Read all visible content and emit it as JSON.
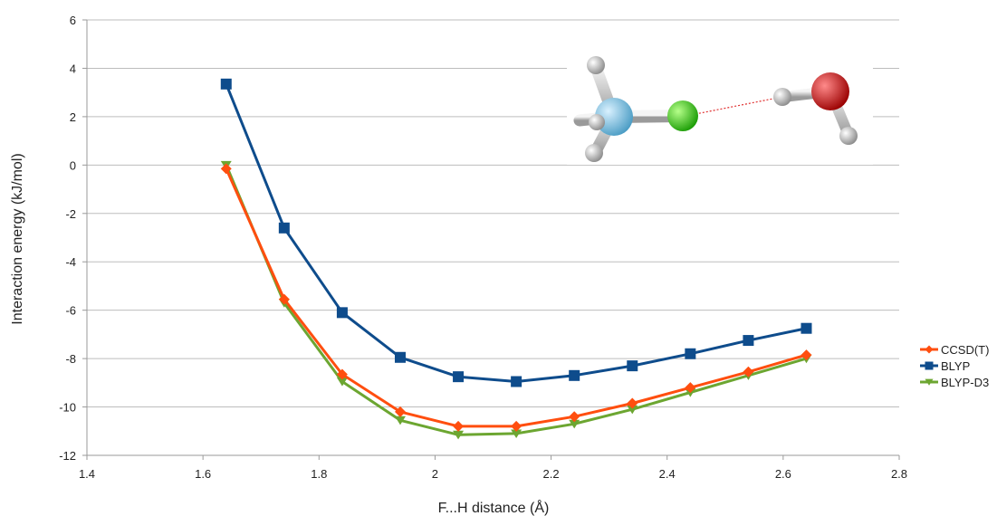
{
  "chart_data": {
    "type": "line",
    "xlabel": "F...H distance (Å)",
    "ylabel": "Interaction energy (kJ/mol)",
    "xlim": [
      1.4,
      2.8
    ],
    "ylim": [
      -12,
      6
    ],
    "xticks": [
      "1.4",
      "1.6",
      "1.8",
      "2",
      "2.2",
      "2.4",
      "2.6",
      "2.8"
    ],
    "yticks": [
      "6",
      "4",
      "2",
      "0",
      "-2",
      "-4",
      "-6",
      "-8",
      "-10",
      "-12"
    ],
    "grid": "horizontal",
    "legend_position": "right",
    "x": [
      1.64,
      1.74,
      1.84,
      1.94,
      2.04,
      2.14,
      2.24,
      2.34,
      2.44,
      2.54,
      2.64
    ],
    "series": [
      {
        "name": "CCSD(T)",
        "color": "#ff4e0f",
        "marker": "diamond",
        "values": [
          -0.15,
          -5.55,
          -8.65,
          -10.2,
          -10.8,
          -10.8,
          -10.4,
          -9.85,
          -9.2,
          -8.55,
          -7.85
        ]
      },
      {
        "name": "BLYP",
        "color": "#0e4c8c",
        "marker": "square",
        "values": [
          3.35,
          -2.6,
          -6.1,
          -7.95,
          -8.75,
          -8.95,
          -8.7,
          -8.3,
          -7.8,
          -7.25,
          -6.75
        ]
      },
      {
        "name": "BLYP-D3",
        "color": "#6ca631",
        "marker": "triangle-down",
        "values": [
          0.0,
          -5.7,
          -8.95,
          -10.55,
          -11.15,
          -11.1,
          -10.7,
          -10.1,
          -9.4,
          -8.7,
          -8.0
        ]
      }
    ]
  },
  "molecule_image": {
    "name": "CH3F...H2O complex",
    "colors": {
      "carbon": "#7ac4e8",
      "fluorine": "#33cc10",
      "oxygen": "#e00000",
      "hydrogen": "#e6e6e6",
      "bond": "#cccccc",
      "hbond": "#e03030"
    }
  }
}
